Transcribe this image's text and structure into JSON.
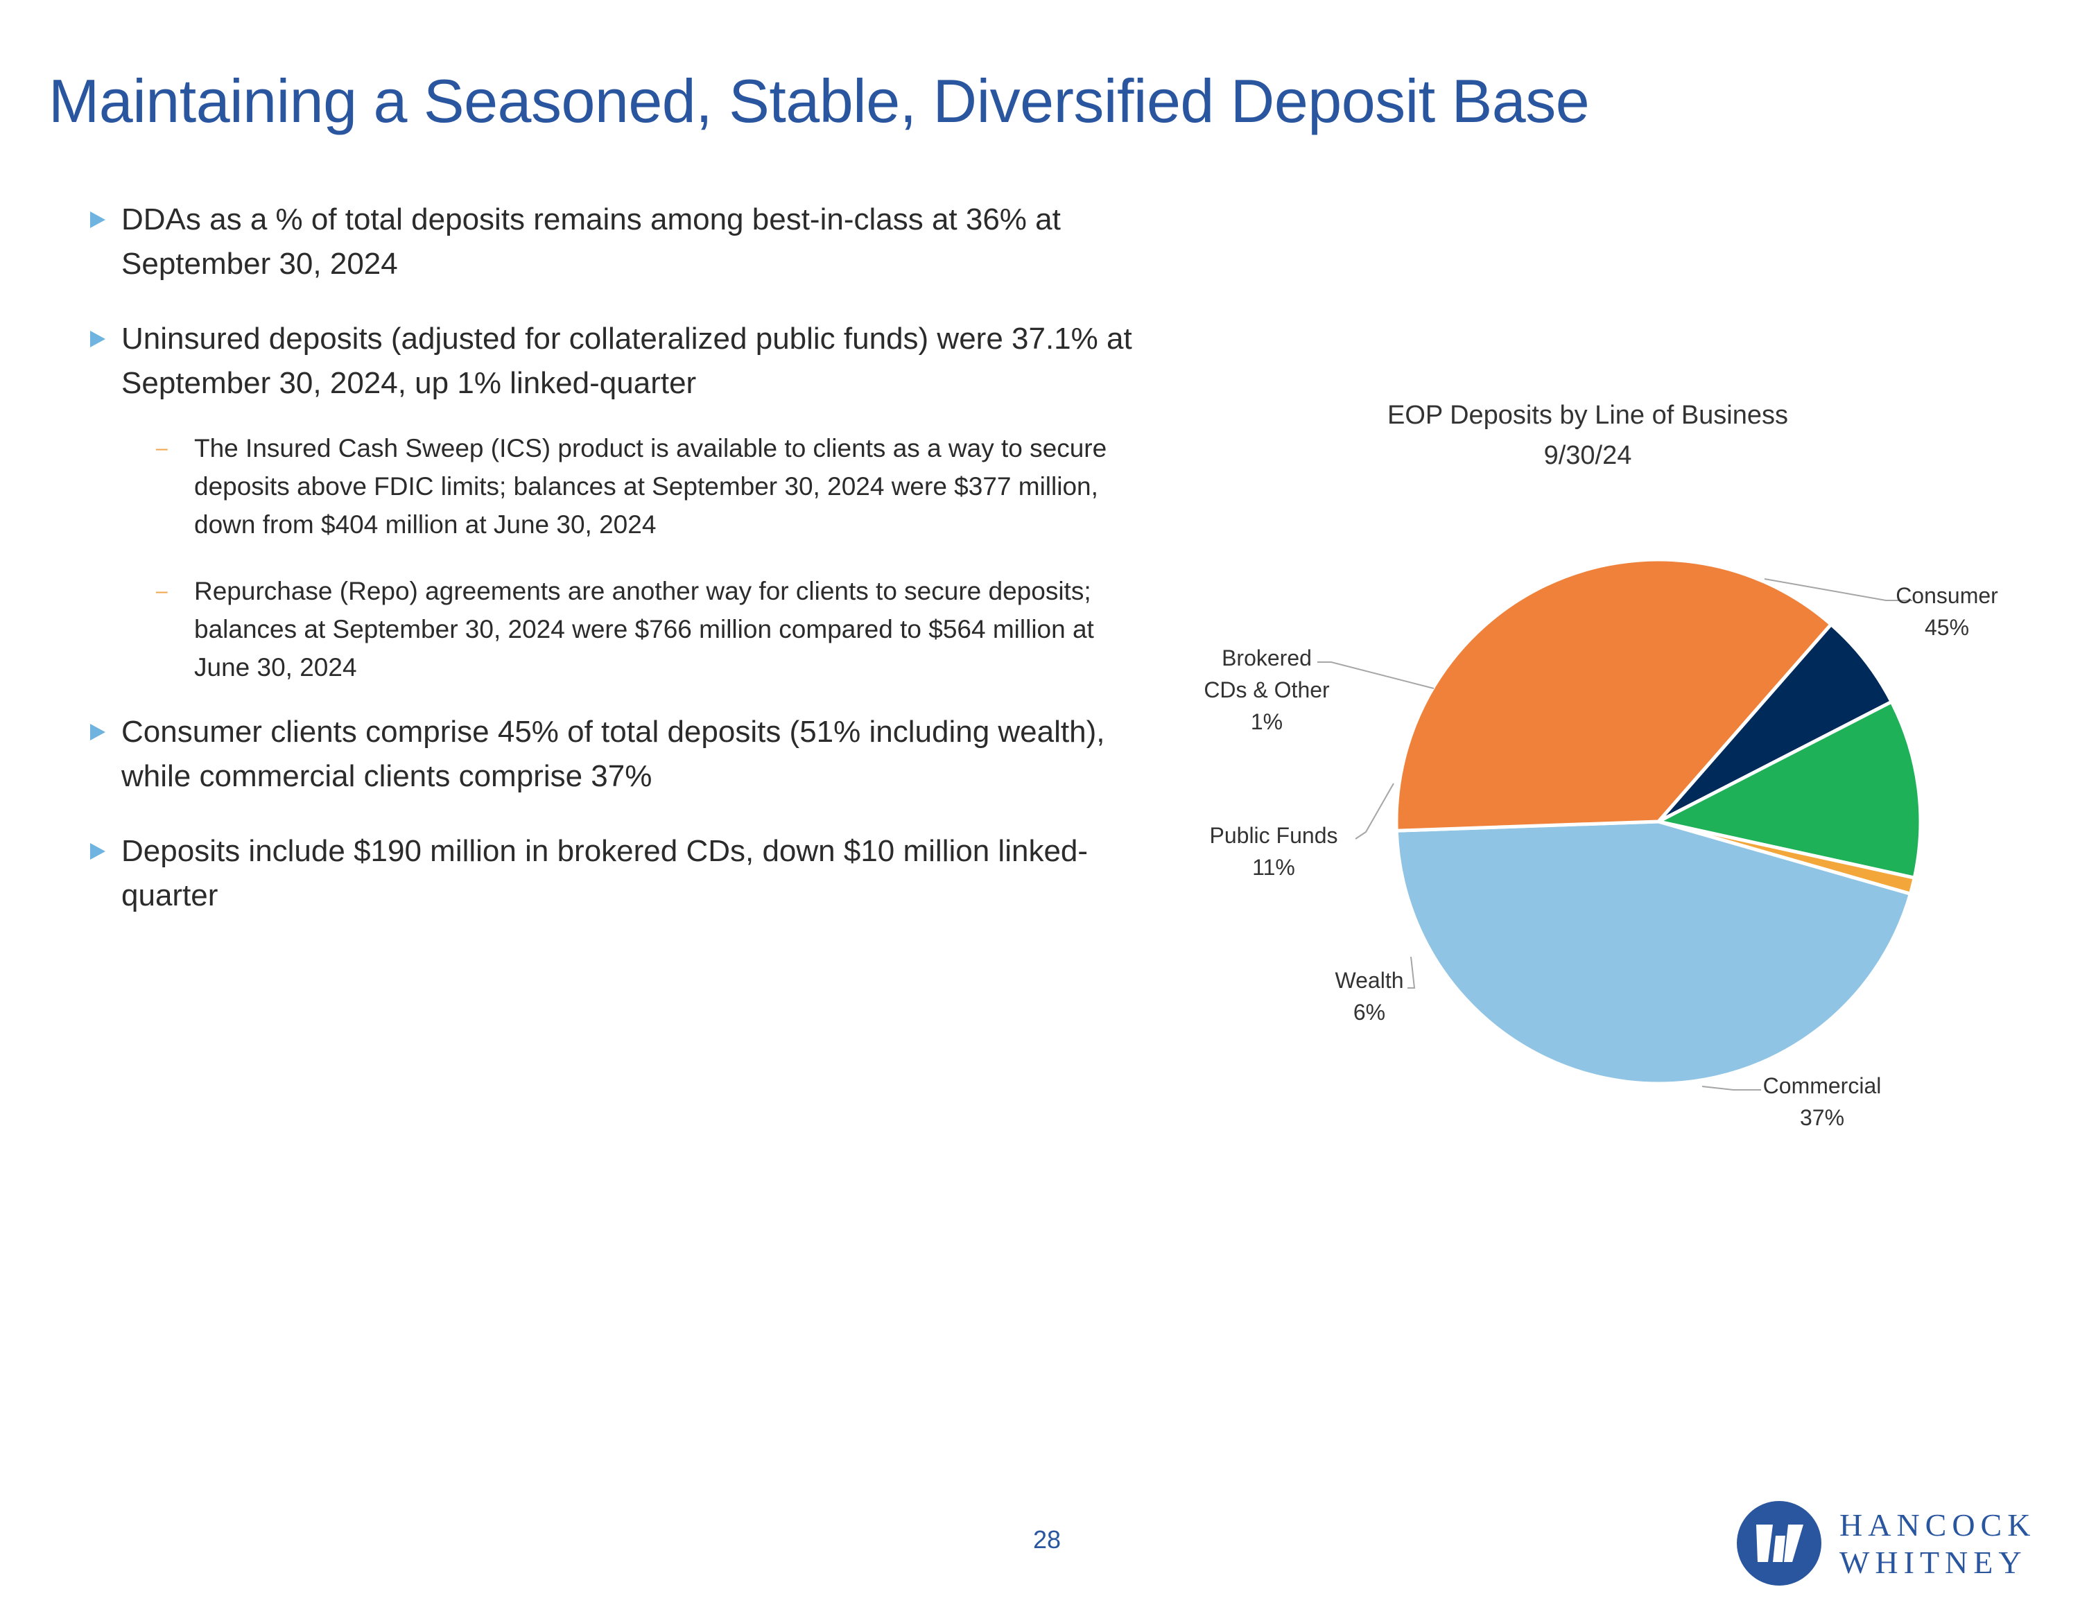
{
  "page": {
    "title": "Maintaining a Seasoned, Stable, Diversified Deposit Base",
    "page_number": "28"
  },
  "bullets": {
    "b1": "DDAs as a % of total deposits remains among best-in-class at 36% at September 30, 2024",
    "b2": "Uninsured deposits (adjusted for collateralized public funds) were 37.1% at September 30, 2024, up 1% linked-quarter",
    "s1": "The Insured Cash Sweep (ICS) product is available to clients as a way to secure deposits above FDIC limits; balances at September 30, 2024 were $377 million, down from $404 million at June 30, 2024",
    "s2": "Repurchase (Repo) agreements are another way for clients to secure deposits; balances at September 30, 2024 were $766 million compared to $564 million at June 30, 2024",
    "b3": "Consumer clients comprise 45% of total deposits (51% including wealth), while commercial clients comprise 37%",
    "b4": "Deposits include $190 million in brokered CDs, down $10 million linked-quarter",
    "sub_marker": "–"
  },
  "logo": {
    "line1": "HANCOCK",
    "line2": "WHITNEY",
    "color": "#2a56a0"
  },
  "chart_data": {
    "type": "pie",
    "title": "EOP Deposits by Line of Business",
    "subtitle": "9/30/24",
    "start_angle_deg": 16,
    "direction": "clockwise",
    "slices": [
      {
        "label": "Consumer",
        "value": 45,
        "value_label": "45%",
        "color": "#90c4e4"
      },
      {
        "label": "Commercial",
        "value": 37,
        "value_label": "37%",
        "color": "#f0813a"
      },
      {
        "label": "Wealth",
        "value": 6,
        "value_label": "6%",
        "color": "#002a5a"
      },
      {
        "label": "Public Funds",
        "value": 11,
        "value_label": "11%",
        "color": "#1fb158"
      },
      {
        "label": "Brokered\nCDs & Other",
        "value": 1,
        "value_label": "1%",
        "color": "#f3a73a"
      }
    ],
    "legend": "none",
    "data_labels": "outside with leader lines"
  }
}
